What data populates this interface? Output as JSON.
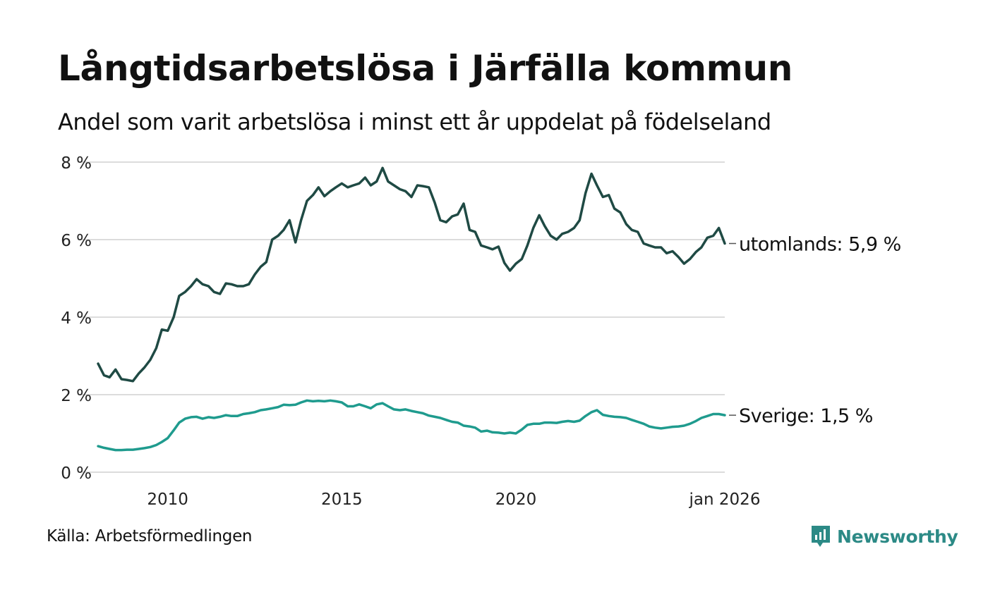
{
  "title": "Långtidsarbetslösa i Järfälla kommun",
  "subtitle": "Andel som varit arbetslösa i minst ett år uppdelat på födelseland",
  "source": "Källa: Arbetsförmedlingen",
  "brand": {
    "name": "Newsworthy",
    "logo_icon": "newsworthy-chart-icon",
    "color": "#2c8a86"
  },
  "chart_data": {
    "type": "line",
    "title": "Långtidsarbetslösa i Järfälla kommun",
    "xlabel": "",
    "ylabel": "",
    "xlim": [
      2008.0,
      2026.0
    ],
    "ylim": [
      0,
      8
    ],
    "grid": true,
    "y_ticks": [
      {
        "value": 0,
        "label": "0 %"
      },
      {
        "value": 2,
        "label": "2 %"
      },
      {
        "value": 4,
        "label": "4 %"
      },
      {
        "value": 6,
        "label": "6 %"
      },
      {
        "value": 8,
        "label": "8 %"
      }
    ],
    "x_ticks": [
      {
        "value": 2010,
        "label": "2010"
      },
      {
        "value": 2015,
        "label": "2015"
      },
      {
        "value": 2020,
        "label": "2020"
      },
      {
        "value": 2026,
        "label": "jan 2026"
      }
    ],
    "series": [
      {
        "name": "utomlands",
        "end_label": "utomlands: 5,9 %",
        "color": "#1f4a44",
        "points": [
          [
            2008.0,
            2.8
          ],
          [
            2008.17,
            2.5
          ],
          [
            2008.33,
            2.45
          ],
          [
            2008.5,
            2.65
          ],
          [
            2008.67,
            2.4
          ],
          [
            2008.83,
            2.38
          ],
          [
            2009.0,
            2.35
          ],
          [
            2009.17,
            2.55
          ],
          [
            2009.33,
            2.7
          ],
          [
            2009.5,
            2.9
          ],
          [
            2009.67,
            3.2
          ],
          [
            2009.83,
            3.68
          ],
          [
            2010.0,
            3.65
          ],
          [
            2010.17,
            4.0
          ],
          [
            2010.33,
            4.55
          ],
          [
            2010.5,
            4.65
          ],
          [
            2010.67,
            4.8
          ],
          [
            2010.83,
            4.98
          ],
          [
            2011.0,
            4.85
          ],
          [
            2011.17,
            4.8
          ],
          [
            2011.33,
            4.65
          ],
          [
            2011.5,
            4.6
          ],
          [
            2011.67,
            4.87
          ],
          [
            2011.83,
            4.85
          ],
          [
            2012.0,
            4.8
          ],
          [
            2012.17,
            4.8
          ],
          [
            2012.33,
            4.85
          ],
          [
            2012.5,
            5.1
          ],
          [
            2012.67,
            5.3
          ],
          [
            2012.83,
            5.42
          ],
          [
            2013.0,
            6.0
          ],
          [
            2013.17,
            6.1
          ],
          [
            2013.33,
            6.25
          ],
          [
            2013.5,
            6.5
          ],
          [
            2013.67,
            5.93
          ],
          [
            2013.83,
            6.5
          ],
          [
            2014.0,
            7.0
          ],
          [
            2014.17,
            7.15
          ],
          [
            2014.33,
            7.35
          ],
          [
            2014.5,
            7.12
          ],
          [
            2014.67,
            7.25
          ],
          [
            2014.83,
            7.35
          ],
          [
            2015.0,
            7.45
          ],
          [
            2015.17,
            7.35
          ],
          [
            2015.33,
            7.4
          ],
          [
            2015.5,
            7.45
          ],
          [
            2015.67,
            7.6
          ],
          [
            2015.83,
            7.4
          ],
          [
            2016.0,
            7.5
          ],
          [
            2016.17,
            7.85
          ],
          [
            2016.33,
            7.5
          ],
          [
            2016.5,
            7.4
          ],
          [
            2016.67,
            7.3
          ],
          [
            2016.83,
            7.25
          ],
          [
            2017.0,
            7.1
          ],
          [
            2017.17,
            7.4
          ],
          [
            2017.33,
            7.38
          ],
          [
            2017.5,
            7.35
          ],
          [
            2017.67,
            6.95
          ],
          [
            2017.83,
            6.5
          ],
          [
            2018.0,
            6.45
          ],
          [
            2018.17,
            6.6
          ],
          [
            2018.33,
            6.65
          ],
          [
            2018.5,
            6.93
          ],
          [
            2018.67,
            6.25
          ],
          [
            2018.83,
            6.2
          ],
          [
            2019.0,
            5.85
          ],
          [
            2019.17,
            5.8
          ],
          [
            2019.33,
            5.75
          ],
          [
            2019.5,
            5.82
          ],
          [
            2019.67,
            5.4
          ],
          [
            2019.83,
            5.2
          ],
          [
            2020.0,
            5.38
          ],
          [
            2020.17,
            5.5
          ],
          [
            2020.33,
            5.85
          ],
          [
            2020.5,
            6.3
          ],
          [
            2020.67,
            6.63
          ],
          [
            2020.83,
            6.35
          ],
          [
            2021.0,
            6.1
          ],
          [
            2021.17,
            6.0
          ],
          [
            2021.33,
            6.15
          ],
          [
            2021.5,
            6.2
          ],
          [
            2021.67,
            6.3
          ],
          [
            2021.83,
            6.5
          ],
          [
            2022.0,
            7.2
          ],
          [
            2022.17,
            7.7
          ],
          [
            2022.33,
            7.4
          ],
          [
            2022.5,
            7.1
          ],
          [
            2022.67,
            7.15
          ],
          [
            2022.83,
            6.8
          ],
          [
            2023.0,
            6.7
          ],
          [
            2023.17,
            6.4
          ],
          [
            2023.33,
            6.25
          ],
          [
            2023.5,
            6.2
          ],
          [
            2023.67,
            5.9
          ],
          [
            2023.83,
            5.85
          ],
          [
            2024.0,
            5.8
          ],
          [
            2024.17,
            5.8
          ],
          [
            2024.33,
            5.65
          ],
          [
            2024.5,
            5.7
          ],
          [
            2024.67,
            5.55
          ],
          [
            2024.83,
            5.38
          ],
          [
            2025.0,
            5.5
          ],
          [
            2025.17,
            5.68
          ],
          [
            2025.33,
            5.8
          ],
          [
            2025.5,
            6.05
          ],
          [
            2025.67,
            6.1
          ],
          [
            2025.83,
            6.3
          ],
          [
            2026.0,
            5.9
          ]
        ]
      },
      {
        "name": "Sverige",
        "end_label": "Sverige: 1,5 %",
        "color": "#1f9b8e",
        "points": [
          [
            2008.0,
            0.67
          ],
          [
            2008.17,
            0.63
          ],
          [
            2008.33,
            0.6
          ],
          [
            2008.5,
            0.57
          ],
          [
            2008.67,
            0.57
          ],
          [
            2008.83,
            0.58
          ],
          [
            2009.0,
            0.58
          ],
          [
            2009.17,
            0.6
          ],
          [
            2009.33,
            0.62
          ],
          [
            2009.5,
            0.65
          ],
          [
            2009.67,
            0.7
          ],
          [
            2009.83,
            0.78
          ],
          [
            2010.0,
            0.88
          ],
          [
            2010.17,
            1.08
          ],
          [
            2010.33,
            1.28
          ],
          [
            2010.5,
            1.38
          ],
          [
            2010.67,
            1.42
          ],
          [
            2010.83,
            1.43
          ],
          [
            2011.0,
            1.38
          ],
          [
            2011.17,
            1.42
          ],
          [
            2011.33,
            1.4
          ],
          [
            2011.5,
            1.43
          ],
          [
            2011.67,
            1.47
          ],
          [
            2011.83,
            1.45
          ],
          [
            2012.0,
            1.45
          ],
          [
            2012.17,
            1.5
          ],
          [
            2012.33,
            1.52
          ],
          [
            2012.5,
            1.55
          ],
          [
            2012.67,
            1.6
          ],
          [
            2012.83,
            1.62
          ],
          [
            2013.0,
            1.65
          ],
          [
            2013.17,
            1.68
          ],
          [
            2013.33,
            1.74
          ],
          [
            2013.5,
            1.73
          ],
          [
            2013.67,
            1.74
          ],
          [
            2013.83,
            1.8
          ],
          [
            2014.0,
            1.85
          ],
          [
            2014.17,
            1.83
          ],
          [
            2014.33,
            1.84
          ],
          [
            2014.5,
            1.83
          ],
          [
            2014.67,
            1.85
          ],
          [
            2014.83,
            1.83
          ],
          [
            2015.0,
            1.8
          ],
          [
            2015.17,
            1.7
          ],
          [
            2015.33,
            1.7
          ],
          [
            2015.5,
            1.75
          ],
          [
            2015.67,
            1.7
          ],
          [
            2015.83,
            1.65
          ],
          [
            2016.0,
            1.75
          ],
          [
            2016.17,
            1.78
          ],
          [
            2016.33,
            1.7
          ],
          [
            2016.5,
            1.62
          ],
          [
            2016.67,
            1.6
          ],
          [
            2016.83,
            1.62
          ],
          [
            2017.0,
            1.58
          ],
          [
            2017.17,
            1.55
          ],
          [
            2017.33,
            1.52
          ],
          [
            2017.5,
            1.46
          ],
          [
            2017.67,
            1.43
          ],
          [
            2017.83,
            1.4
          ],
          [
            2018.0,
            1.35
          ],
          [
            2018.17,
            1.3
          ],
          [
            2018.33,
            1.28
          ],
          [
            2018.5,
            1.2
          ],
          [
            2018.67,
            1.18
          ],
          [
            2018.83,
            1.15
          ],
          [
            2019.0,
            1.05
          ],
          [
            2019.17,
            1.07
          ],
          [
            2019.33,
            1.03
          ],
          [
            2019.5,
            1.02
          ],
          [
            2019.67,
            1.0
          ],
          [
            2019.83,
            1.02
          ],
          [
            2020.0,
            1.0
          ],
          [
            2020.17,
            1.1
          ],
          [
            2020.33,
            1.22
          ],
          [
            2020.5,
            1.25
          ],
          [
            2020.67,
            1.25
          ],
          [
            2020.83,
            1.28
          ],
          [
            2021.0,
            1.28
          ],
          [
            2021.17,
            1.27
          ],
          [
            2021.33,
            1.3
          ],
          [
            2021.5,
            1.32
          ],
          [
            2021.67,
            1.3
          ],
          [
            2021.83,
            1.33
          ],
          [
            2022.0,
            1.45
          ],
          [
            2022.17,
            1.55
          ],
          [
            2022.33,
            1.6
          ],
          [
            2022.5,
            1.48
          ],
          [
            2022.67,
            1.45
          ],
          [
            2022.83,
            1.43
          ],
          [
            2023.0,
            1.42
          ],
          [
            2023.17,
            1.4
          ],
          [
            2023.33,
            1.35
          ],
          [
            2023.5,
            1.3
          ],
          [
            2023.67,
            1.25
          ],
          [
            2023.83,
            1.18
          ],
          [
            2024.0,
            1.15
          ],
          [
            2024.17,
            1.13
          ],
          [
            2024.33,
            1.15
          ],
          [
            2024.5,
            1.17
          ],
          [
            2024.67,
            1.18
          ],
          [
            2024.83,
            1.2
          ],
          [
            2025.0,
            1.25
          ],
          [
            2025.17,
            1.32
          ],
          [
            2025.33,
            1.4
          ],
          [
            2025.5,
            1.45
          ],
          [
            2025.67,
            1.5
          ],
          [
            2025.83,
            1.5
          ],
          [
            2026.0,
            1.47
          ]
        ]
      }
    ]
  }
}
